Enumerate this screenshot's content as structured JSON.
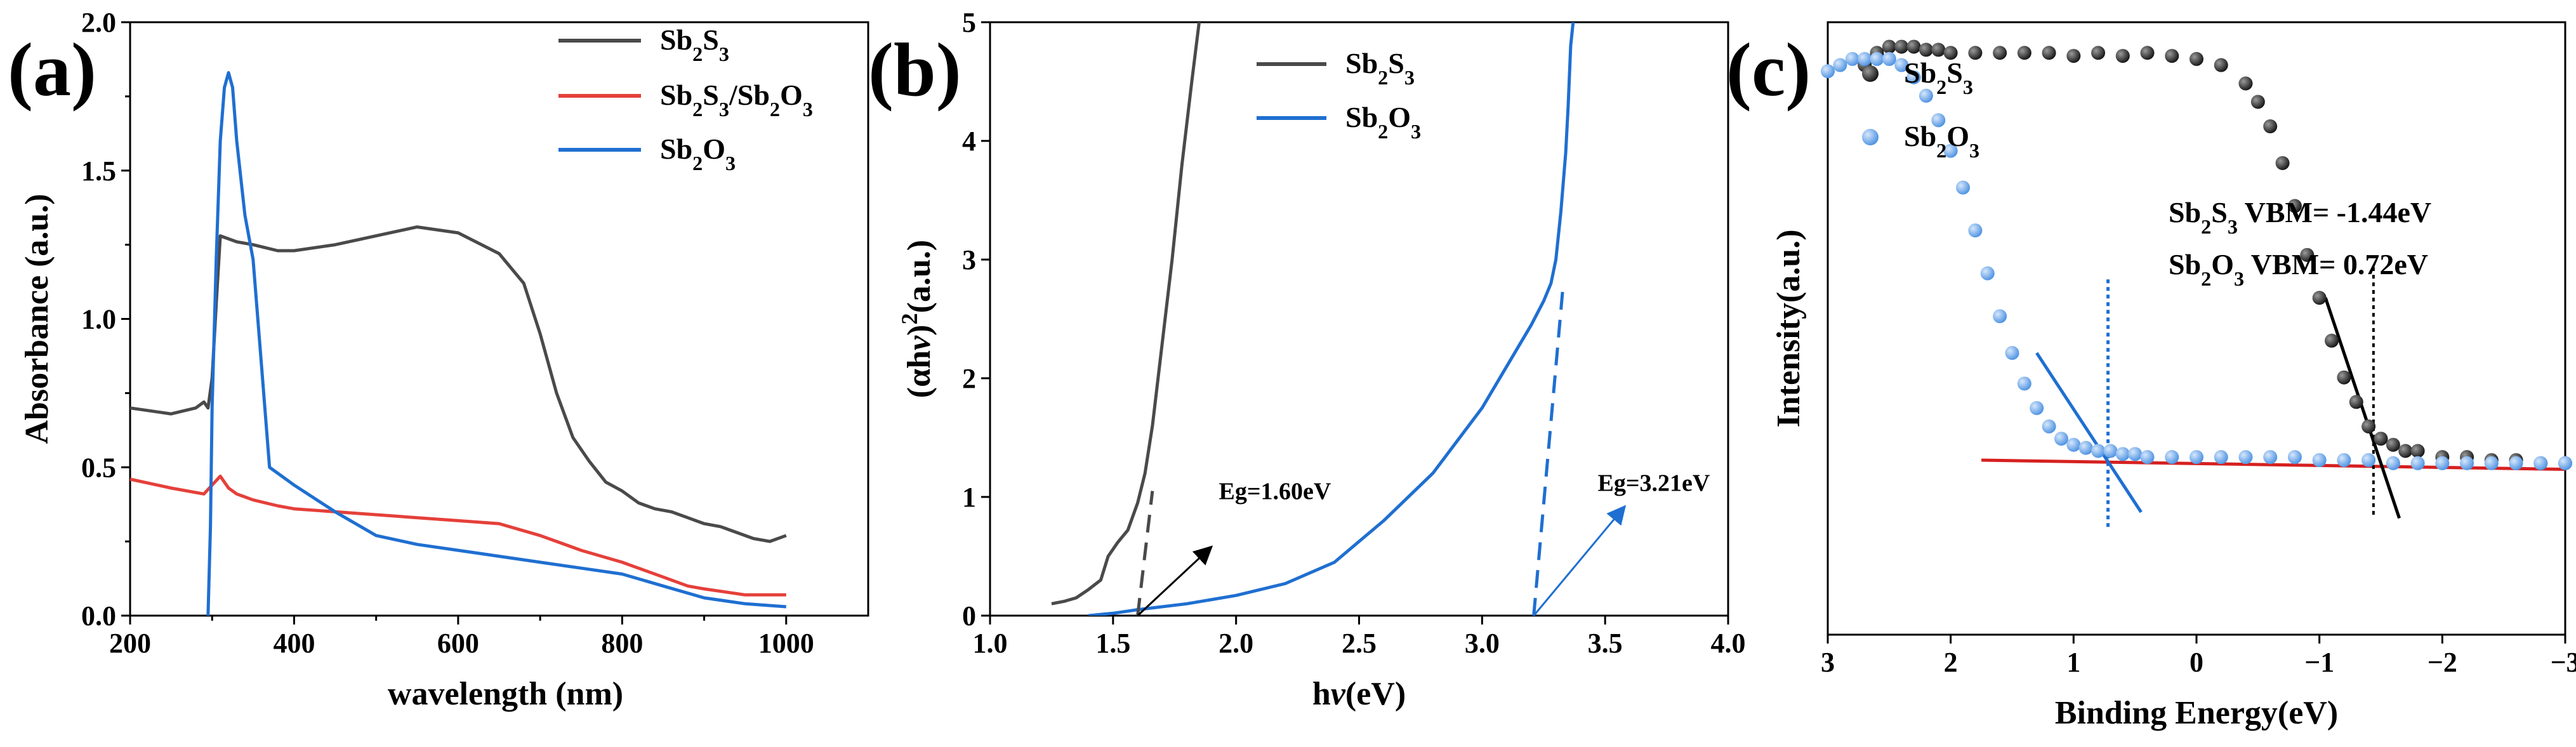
{
  "panels": [
    {
      "panel_label": "(a)",
      "xlabel": "wavelength (nm)",
      "ylabel": "Absorbance (a.u.)",
      "xticks": [
        "200",
        "400",
        "600",
        "800",
        "1000"
      ],
      "yticks": [
        "0.0",
        "0.5",
        "1.0",
        "1.5",
        "2.0"
      ],
      "legend": [
        {
          "main": "Sb",
          "parts": [
            [
              "Sb",
              ""
            ],
            [
              "2",
              "sub"
            ],
            [
              "S",
              ""
            ],
            [
              "3",
              "sub"
            ]
          ]
        },
        {
          "main": "Sb2S3/Sb2O3",
          "parts": [
            [
              "Sb",
              ""
            ],
            [
              "2",
              "sub"
            ],
            [
              "S",
              ""
            ],
            [
              "3",
              "sub"
            ],
            [
              "/Sb",
              ""
            ],
            [
              "2",
              "sub"
            ],
            [
              "O",
              ""
            ],
            [
              "3",
              "sub"
            ]
          ]
        },
        {
          "main": "Sb2O3",
          "parts": [
            [
              "Sb",
              ""
            ],
            [
              "2",
              "sub"
            ],
            [
              "O",
              ""
            ],
            [
              "3",
              "sub"
            ]
          ]
        }
      ]
    },
    {
      "panel_label": "(b)",
      "xlabel_parts": [
        [
          "h",
          ""
        ],
        [
          "ν",
          "ital"
        ],
        [
          "(eV)",
          ""
        ]
      ],
      "ylabel_parts": [
        [
          "(αh",
          ""
        ],
        [
          "ν",
          "ital"
        ],
        [
          ")",
          ""
        ],
        [
          "2",
          "sup"
        ],
        [
          "(a.u.)",
          ""
        ]
      ],
      "xticks": [
        "1.0",
        "1.5",
        "2.0",
        "2.5",
        "3.0",
        "3.5",
        "4.0"
      ],
      "yticks": [
        "0",
        "1",
        "2",
        "3",
        "4",
        "5"
      ],
      "legend": [
        {
          "parts": [
            [
              "Sb",
              ""
            ],
            [
              "2",
              "sub"
            ],
            [
              "S",
              ""
            ],
            [
              "3",
              "sub"
            ]
          ]
        },
        {
          "parts": [
            [
              "Sb",
              ""
            ],
            [
              "2",
              "sub"
            ],
            [
              "O",
              ""
            ],
            [
              "3",
              "sub"
            ]
          ]
        }
      ],
      "annotations": [
        "Eg=1.60eV",
        "Eg=3.21eV"
      ]
    },
    {
      "panel_label": "(c)",
      "xlabel": "Binding Energy(eV)",
      "ylabel": "Intensity(a.u.)",
      "xticks": [
        "3",
        "2",
        "1",
        "0",
        "−1",
        "−2",
        "−3"
      ],
      "legend": [
        {
          "parts": [
            [
              "Sb",
              ""
            ],
            [
              "2",
              "sub"
            ],
            [
              "S",
              ""
            ],
            [
              "3",
              "sub"
            ]
          ]
        },
        {
          "parts": [
            [
              "Sb",
              ""
            ],
            [
              "2",
              "sub"
            ],
            [
              "O",
              ""
            ],
            [
              "3",
              "sub"
            ]
          ]
        }
      ],
      "vbm_lines": [
        {
          "parts": [
            [
              "Sb",
              ""
            ],
            [
              "2",
              "sub"
            ],
            [
              "S",
              ""
            ],
            [
              "3",
              "sub"
            ],
            [
              " VBM= -1.44eV",
              ""
            ]
          ]
        },
        {
          "parts": [
            [
              "Sb",
              ""
            ],
            [
              "2",
              "sub"
            ],
            [
              "O",
              ""
            ],
            [
              "3",
              "sub"
            ],
            [
              " VBM= 0.72eV",
              ""
            ]
          ]
        }
      ]
    }
  ],
  "colors": {
    "sb2s3": "#4a4a4a",
    "composite": "#e5403a",
    "sb2o3": "#1f6fd1",
    "sb2o3_marker": "#4a90e2",
    "sb2s3_marker": "#111111",
    "fit_red": "#d62020"
  },
  "chart_data": [
    {
      "type": "line",
      "xlim": [
        200,
        1100
      ],
      "ylim": [
        0,
        2.0
      ],
      "series": [
        {
          "name": "Sb2S3",
          "x": [
            200,
            250,
            280,
            290,
            295,
            300,
            305,
            310,
            330,
            350,
            380,
            400,
            450,
            500,
            550,
            600,
            650,
            680,
            700,
            720,
            740,
            760,
            780,
            800,
            820,
            840,
            860,
            880,
            900,
            920,
            940,
            960,
            980,
            1000
          ],
          "y": [
            0.7,
            0.68,
            0.7,
            0.72,
            0.7,
            0.8,
            1.05,
            1.28,
            1.26,
            1.25,
            1.23,
            1.23,
            1.25,
            1.28,
            1.31,
            1.29,
            1.22,
            1.12,
            0.95,
            0.75,
            0.6,
            0.52,
            0.45,
            0.42,
            0.38,
            0.36,
            0.35,
            0.33,
            0.31,
            0.3,
            0.28,
            0.26,
            0.25,
            0.27
          ]
        },
        {
          "name": "Sb2S3/Sb2O3",
          "x": [
            200,
            250,
            290,
            300,
            310,
            320,
            330,
            350,
            380,
            400,
            450,
            500,
            550,
            600,
            650,
            700,
            750,
            800,
            850,
            880,
            900,
            950,
            1000
          ],
          "y": [
            0.46,
            0.43,
            0.41,
            0.44,
            0.47,
            0.43,
            0.41,
            0.39,
            0.37,
            0.36,
            0.35,
            0.34,
            0.33,
            0.32,
            0.31,
            0.27,
            0.22,
            0.18,
            0.13,
            0.1,
            0.09,
            0.07,
            0.07
          ]
        },
        {
          "name": "Sb2O3",
          "x": [
            295,
            298,
            300,
            305,
            310,
            315,
            320,
            325,
            330,
            340,
            350,
            360,
            370,
            400,
            450,
            500,
            550,
            600,
            650,
            700,
            750,
            800,
            850,
            900,
            950,
            1000
          ],
          "y": [
            0.0,
            0.3,
            0.7,
            1.2,
            1.6,
            1.78,
            1.83,
            1.78,
            1.6,
            1.35,
            1.2,
            0.85,
            0.5,
            0.44,
            0.35,
            0.27,
            0.24,
            0.22,
            0.2,
            0.18,
            0.16,
            0.14,
            0.1,
            0.06,
            0.04,
            0.03
          ]
        }
      ]
    },
    {
      "type": "line",
      "xlim": [
        1.0,
        4.0
      ],
      "ylim": [
        0,
        5
      ],
      "series": [
        {
          "name": "Sb2S3",
          "x": [
            1.25,
            1.3,
            1.35,
            1.4,
            1.45,
            1.48,
            1.52,
            1.56,
            1.6,
            1.63,
            1.66,
            1.7,
            1.74,
            1.78,
            1.82,
            1.85
          ],
          "y": [
            0.1,
            0.12,
            0.15,
            0.22,
            0.3,
            0.5,
            0.62,
            0.72,
            0.95,
            1.2,
            1.6,
            2.3,
            3.0,
            3.8,
            4.5,
            5.0
          ]
        },
        {
          "name": "Sb2O3",
          "x": [
            1.4,
            1.5,
            1.6,
            1.8,
            2.0,
            2.2,
            2.4,
            2.6,
            2.8,
            3.0,
            3.1,
            3.2,
            3.25,
            3.28,
            3.3,
            3.32,
            3.34,
            3.35,
            3.36,
            3.37
          ],
          "y": [
            0.0,
            0.02,
            0.05,
            0.1,
            0.17,
            0.27,
            0.45,
            0.8,
            1.2,
            1.75,
            2.1,
            2.45,
            2.65,
            2.8,
            3.0,
            3.4,
            3.9,
            4.3,
            4.8,
            5.0
          ]
        }
      ],
      "tangents": [
        {
          "x": [
            1.6,
            1.66
          ],
          "y": [
            0.0,
            1.05
          ]
        },
        {
          "x": [
            3.21,
            3.33
          ],
          "y": [
            0.0,
            2.8
          ]
        }
      ]
    },
    {
      "type": "scatter",
      "xlim": [
        3,
        -3
      ],
      "series": [
        {
          "name": "Sb2S3",
          "x": [
            2.7,
            2.6,
            2.5,
            2.4,
            2.3,
            2.2,
            2.1,
            2.0,
            1.8,
            1.6,
            1.4,
            1.2,
            1.0,
            0.8,
            0.6,
            0.4,
            0.2,
            0.0,
            -0.2,
            -0.4,
            -0.5,
            -0.6,
            -0.7,
            -0.8,
            -0.9,
            -1.0,
            -1.1,
            -1.2,
            -1.3,
            -1.4,
            -1.5,
            -1.6,
            -1.7,
            -1.8,
            -2.0,
            -2.2,
            -2.4,
            -2.6,
            -2.8,
            -3.0
          ],
          "y": [
            0.93,
            0.95,
            0.96,
            0.96,
            0.96,
            0.955,
            0.955,
            0.95,
            0.95,
            0.95,
            0.95,
            0.95,
            0.945,
            0.95,
            0.945,
            0.95,
            0.945,
            0.94,
            0.93,
            0.9,
            0.87,
            0.83,
            0.77,
            0.7,
            0.62,
            0.55,
            0.48,
            0.42,
            0.38,
            0.34,
            0.32,
            0.31,
            0.3,
            0.3,
            0.29,
            0.29,
            0.285,
            0.285,
            0.28,
            0.28
          ]
        },
        {
          "name": "Sb2O3",
          "x": [
            3.0,
            2.9,
            2.8,
            2.7,
            2.6,
            2.5,
            2.4,
            2.3,
            2.2,
            2.1,
            2.0,
            1.9,
            1.8,
            1.7,
            1.6,
            1.5,
            1.4,
            1.3,
            1.2,
            1.1,
            1.0,
            0.9,
            0.8,
            0.7,
            0.6,
            0.5,
            0.4,
            0.2,
            0.0,
            -0.2,
            -0.4,
            -0.6,
            -0.8,
            -1.0,
            -1.2,
            -1.4,
            -1.6,
            -1.8,
            -2.0,
            -2.2,
            -2.4,
            -2.6,
            -2.8,
            -3.0
          ],
          "y": [
            0.92,
            0.93,
            0.94,
            0.94,
            0.94,
            0.94,
            0.93,
            0.91,
            0.88,
            0.84,
            0.79,
            0.73,
            0.66,
            0.59,
            0.52,
            0.46,
            0.41,
            0.37,
            0.34,
            0.32,
            0.31,
            0.305,
            0.3,
            0.3,
            0.295,
            0.295,
            0.29,
            0.29,
            0.29,
            0.29,
            0.29,
            0.29,
            0.29,
            0.285,
            0.285,
            0.285,
            0.28,
            0.28,
            0.28,
            0.28,
            0.28,
            0.28,
            0.28,
            0.28
          ]
        }
      ],
      "baseline": {
        "x": [
          1.75,
          -3.0
        ],
        "y": [
          0.285,
          0.27
        ]
      },
      "fits": [
        {
          "x": [
            1.3,
            0.45
          ],
          "y": [
            0.46,
            0.2
          ]
        },
        {
          "x": [
            -1.05,
            -1.65
          ],
          "y": [
            0.55,
            0.19
          ]
        }
      ],
      "vbm_markers": [
        0.72,
        -1.44
      ]
    }
  ]
}
